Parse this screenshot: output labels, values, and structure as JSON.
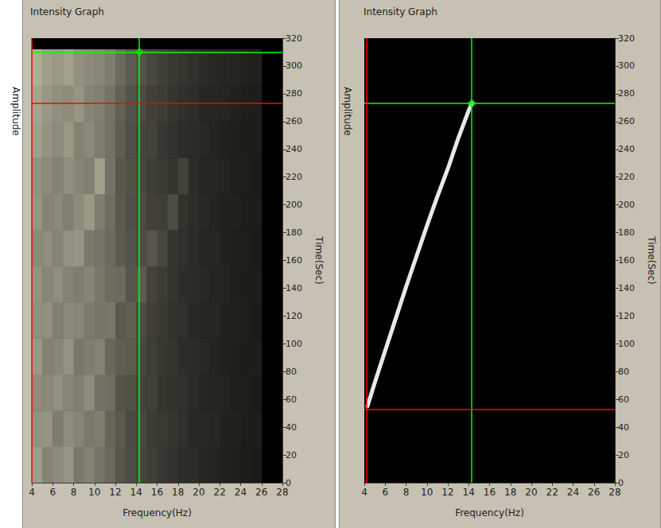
{
  "chart_data": [
    {
      "type": "heatmap",
      "title": "Intensity Graph",
      "xlabel": "Frequency(Hz)",
      "ylabel": "Time(Sec)",
      "colorbar_label": "Amplitude",
      "xlim": [
        4,
        28
      ],
      "xticks": [
        4,
        6,
        8,
        10,
        12,
        14,
        16,
        18,
        20,
        22,
        24,
        26,
        28
      ],
      "ylim": [
        0,
        320
      ],
      "yticks": [
        0,
        20,
        40,
        60,
        80,
        100,
        120,
        140,
        160,
        180,
        200,
        220,
        240,
        260,
        280,
        300,
        320
      ],
      "x_bins": [
        4,
        5,
        6,
        7,
        8,
        9,
        10,
        11,
        12,
        13,
        14,
        15,
        16,
        17,
        18,
        19,
        20,
        21,
        22,
        23,
        24,
        25,
        26
      ],
      "y_bins": [
        0,
        26,
        52,
        78,
        104,
        130,
        156,
        182,
        208,
        234,
        260,
        286,
        312
      ],
      "cells": [
        [
          65,
          55,
          58,
          62,
          50,
          54,
          48,
          44,
          36,
          32,
          29,
          26,
          23,
          21,
          19,
          18,
          16,
          15,
          14,
          13,
          12,
          11
        ],
        [
          60,
          62,
          52,
          58,
          55,
          50,
          52,
          42,
          37,
          31,
          30,
          25,
          24,
          22,
          20,
          17,
          17,
          16,
          14,
          14,
          12,
          12
        ],
        [
          58,
          57,
          60,
          55,
          53,
          58,
          47,
          46,
          35,
          34,
          28,
          27,
          22,
          21,
          20,
          18,
          16,
          15,
          15,
          13,
          13,
          11
        ],
        [
          63,
          54,
          56,
          61,
          50,
          52,
          54,
          43,
          39,
          38,
          30,
          26,
          23,
          22,
          19,
          18,
          17,
          15,
          14,
          13,
          12,
          12
        ],
        [
          59,
          60,
          53,
          57,
          56,
          51,
          49,
          50,
          37,
          40,
          31,
          26,
          24,
          21,
          20,
          17,
          16,
          16,
          14,
          14,
          13,
          11
        ],
        [
          61,
          56,
          59,
          54,
          52,
          55,
          50,
          45,
          44,
          36,
          38,
          28,
          25,
          22,
          19,
          18,
          17,
          15,
          15,
          13,
          12,
          12
        ],
        [
          57,
          59,
          55,
          60,
          62,
          50,
          48,
          44,
          38,
          35,
          32,
          36,
          30,
          22,
          20,
          18,
          16,
          16,
          14,
          13,
          13,
          11
        ],
        [
          62,
          55,
          57,
          53,
          58,
          64,
          52,
          46,
          37,
          33,
          31,
          27,
          26,
          32,
          21,
          19,
          17,
          15,
          14,
          14,
          12,
          12
        ],
        [
          60,
          58,
          54,
          59,
          55,
          53,
          66,
          48,
          36,
          34,
          30,
          26,
          24,
          22,
          28,
          18,
          16,
          16,
          15,
          13,
          13,
          11
        ],
        [
          66,
          61,
          58,
          63,
          54,
          57,
          52,
          47,
          39,
          33,
          29,
          28,
          23,
          21,
          19,
          18,
          17,
          15,
          14,
          13,
          12,
          12
        ],
        [
          68,
          63,
          60,
          58,
          62,
          55,
          53,
          48,
          40,
          35,
          31,
          27,
          25,
          22,
          20,
          19,
          16,
          16,
          15,
          14,
          12,
          12
        ],
        [
          72,
          66,
          64,
          67,
          60,
          58,
          56,
          52,
          44,
          38,
          34,
          30,
          27,
          24,
          22,
          20,
          18,
          17,
          16,
          15,
          14,
          13
        ]
      ],
      "zlim": [
        0,
        100
      ],
      "colors": [
        "#000000",
        "#f4f0d2"
      ],
      "cursors": [
        {
          "color": "#00ff00",
          "x": 14.3,
          "y": 310,
          "marker": "diamond"
        },
        {
          "color": "#ff0000",
          "x": 4,
          "y": 273
        }
      ]
    },
    {
      "type": "line",
      "title": "Intensity Graph",
      "xlabel": "Frequency(Hz)",
      "ylabel": "Time(Sec)",
      "colorbar_label": "Amplitude",
      "xlim": [
        4,
        28
      ],
      "xticks": [
        4,
        6,
        8,
        10,
        12,
        14,
        16,
        18,
        20,
        22,
        24,
        26,
        28
      ],
      "ylim": [
        0,
        320
      ],
      "yticks": [
        0,
        20,
        40,
        60,
        80,
        100,
        120,
        140,
        160,
        180,
        200,
        220,
        240,
        260,
        280,
        300,
        320
      ],
      "x": [
        4.3,
        5,
        6,
        7,
        8,
        9,
        10,
        11,
        12,
        13,
        14,
        14.3
      ],
      "values": [
        55,
        72,
        95,
        118,
        141,
        163,
        185,
        206,
        226,
        248,
        268,
        273
      ],
      "color": "#e8e8e8",
      "cursors": [
        {
          "color": "#00ff00",
          "x": 14.3,
          "y": 273,
          "marker": "diamond"
        },
        {
          "color": "#ff0000",
          "x": 4.2,
          "y": 53
        }
      ]
    }
  ]
}
